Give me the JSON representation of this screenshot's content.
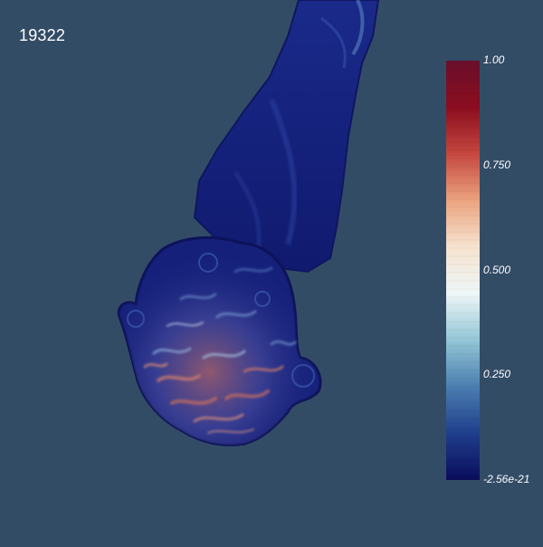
{
  "viewer": {
    "timestep": "19322",
    "render": "volume-rendered-plume"
  },
  "colorbar": {
    "ticks": [
      {
        "label": "1.00",
        "value": 1.0
      },
      {
        "label": "0.750",
        "value": 0.75
      },
      {
        "label": "0.500",
        "value": 0.5
      },
      {
        "label": "0.250",
        "value": 0.25
      },
      {
        "label": "-2.56e-21",
        "value": 0.0
      }
    ],
    "range": [
      0.0,
      1.0
    ],
    "colors": [
      "#0a0d5c",
      "#1f3f8c",
      "#4b7eb0",
      "#93c6d6",
      "#eef6f7",
      "#f6e3cf",
      "#eba37f",
      "#c5473f",
      "#8b0d1f",
      "#6a0f2c"
    ]
  },
  "colors": {
    "background": "#334c66",
    "plume_base": "#13207a",
    "plume_hot": "#c0685c"
  }
}
